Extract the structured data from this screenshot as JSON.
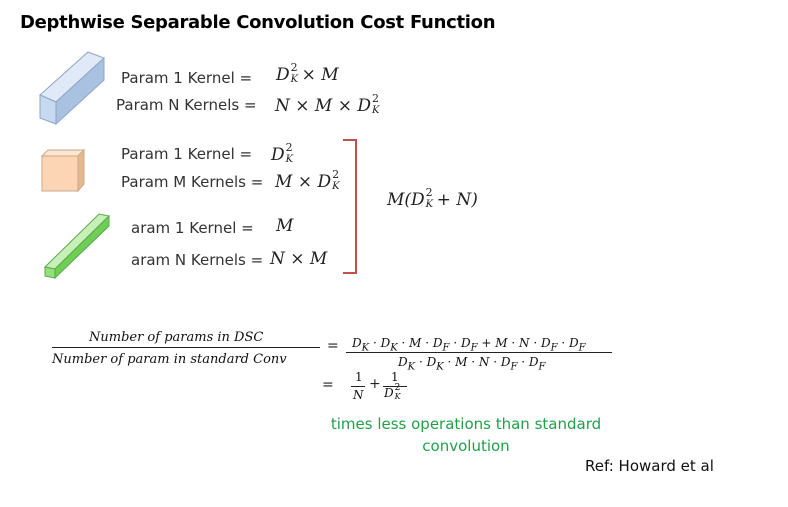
{
  "title": "Depthwise Separable Convolution Cost Function",
  "standard": {
    "param1_label": "Param 1 Kernel =",
    "paramN_label": "Param N Kernels ="
  },
  "depthwise": {
    "param1_label": "Param 1 Kernel =",
    "paramM_label": "Param M Kernels ="
  },
  "pointwise": {
    "param1_label": "aram 1 Kernel =",
    "paramN_label": "aram N Kernels ="
  },
  "colors": {
    "standard_block": "#c5d9f1",
    "depthwise_block": "#fcd5b4",
    "pointwise_block": "#92e07a",
    "bracket": "#c0504d",
    "note": "#21a04a"
  },
  "ratio": {
    "numerator": "Number of params in DSC",
    "denominator": "Number of param in standard Conv"
  },
  "note": {
    "line1": "times less operations than standard",
    "line2": "convolution"
  },
  "ref": "Ref: Howard et al"
}
